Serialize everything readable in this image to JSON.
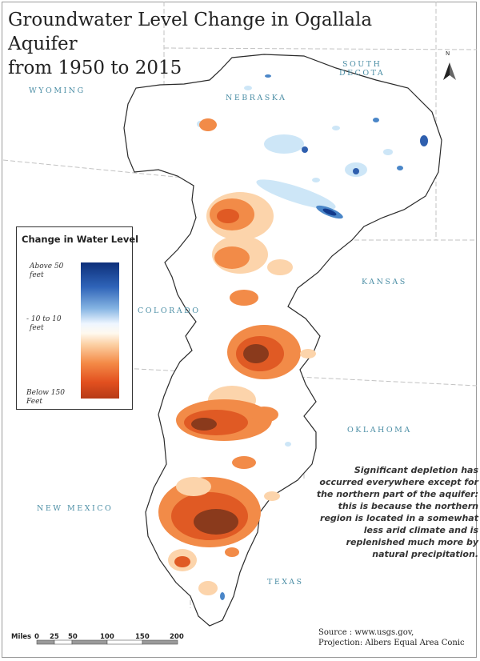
{
  "title_line1": "Groundwater Level Change in Ogallala Aquifer",
  "title_line2": "from 1950 to 2015",
  "states": {
    "wyoming": "WYOMING",
    "south_dakota_line1": "SOUTH",
    "south_dakota_line2": "DECOTA",
    "nebraska": "NEBRASKA",
    "kansas": "KANSAS",
    "colorado": "COLORADO",
    "oklahoma": "OKLAHOMA",
    "new_mexico": "NEW MEXICO",
    "texas": "TEXAS"
  },
  "legend": {
    "title": "Change in Water Level",
    "top_line1": "Above 50",
    "top_line2": "feet",
    "mid_line1": "- 10 to 10",
    "mid_line2": "feet",
    "bottom_line1": "Below 150",
    "bottom_line2": "Feet",
    "color_high": "#0d2f7a",
    "color_mid": "#fff9ef",
    "color_low": "#b63a16"
  },
  "note": {
    "line1": "Significant depletion has",
    "line2": "occurred everywhere except for",
    "line3": "the northern part of the aquifer:",
    "line4": "this is because the northern",
    "line5": "region is located in a somewhat",
    "line6": "less arid climate and is",
    "line7": "replenished much more by",
    "line8": "natural precipitation."
  },
  "source": {
    "line1": "Source : www.usgs.gov,",
    "line2": "Projection: Albers Equal Area Conic"
  },
  "north_arrow_label": "N",
  "scale_bar": {
    "label": "Miles",
    "ticks": [
      "0",
      "25",
      "50",
      "100",
      "150",
      "200"
    ]
  },
  "colors": {
    "outline": "#2a2a2a",
    "state_border": "#bdbdbd",
    "label_teal": "#4d8fa6",
    "depletion_light": "#fcd4ab",
    "depletion_mid": "#f28b48",
    "depletion_strong": "#e05a24",
    "depletion_severe": "#8a3a1c",
    "rise_light": "#cde6f7",
    "rise_mid": "#4a86c8",
    "rise_strong": "#123a8c"
  }
}
